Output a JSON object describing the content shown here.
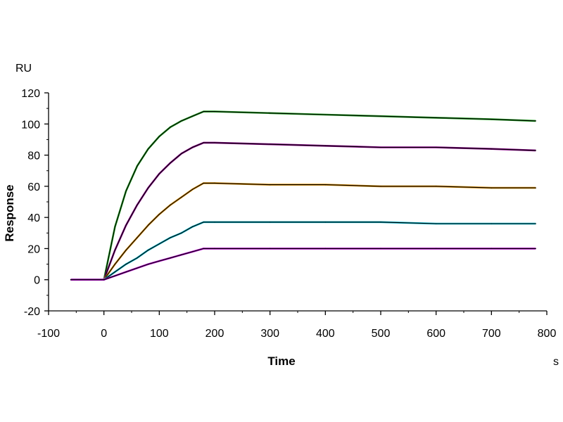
{
  "chart_data": {
    "type": "line",
    "xlabel": "Time",
    "ylabel": "Response",
    "x_unit": "s",
    "y_unit": "RU",
    "xlim": [
      -100,
      800
    ],
    "ylim": [
      -20,
      120
    ],
    "x_ticks": [
      -100,
      0,
      100,
      200,
      300,
      400,
      500,
      600,
      700,
      800
    ],
    "y_ticks": [
      -20,
      0,
      20,
      40,
      60,
      80,
      100,
      120
    ],
    "grid": false,
    "association_end": 180,
    "fit_color": "#000000",
    "series": [
      {
        "color": "#1f9e1f",
        "x": [
          -60,
          0,
          20,
          40,
          60,
          80,
          100,
          120,
          140,
          160,
          180,
          200,
          300,
          400,
          500,
          600,
          700,
          780
        ],
        "y": [
          0,
          0,
          34,
          57,
          73,
          84,
          92,
          98,
          102,
          105,
          108,
          108,
          107,
          106,
          105,
          104,
          103,
          102
        ]
      },
      {
        "color": "#8b008b",
        "x": [
          -60,
          0,
          20,
          40,
          60,
          80,
          100,
          120,
          140,
          160,
          180,
          200,
          300,
          400,
          500,
          600,
          700,
          780
        ],
        "y": [
          0,
          0,
          19,
          35,
          48,
          59,
          68,
          75,
          81,
          85,
          88,
          88,
          87,
          86,
          85,
          85,
          84,
          83
        ]
      },
      {
        "color": "#d98c00",
        "x": [
          -60,
          0,
          20,
          40,
          60,
          80,
          100,
          120,
          140,
          160,
          180,
          200,
          300,
          400,
          500,
          600,
          700,
          780
        ],
        "y": [
          0,
          0,
          10,
          19,
          27,
          35,
          42,
          48,
          53,
          58,
          62,
          62,
          61,
          61,
          60,
          60,
          59,
          59
        ]
      },
      {
        "color": "#00b2c8",
        "x": [
          -60,
          0,
          20,
          40,
          60,
          80,
          100,
          120,
          140,
          160,
          180,
          200,
          300,
          400,
          500,
          600,
          700,
          780
        ],
        "y": [
          0,
          0,
          5,
          10,
          14,
          19,
          23,
          27,
          30,
          34,
          37,
          37,
          37,
          37,
          37,
          36,
          36,
          36
        ]
      },
      {
        "color": "#b000c8",
        "x": [
          -60,
          0,
          20,
          40,
          60,
          80,
          100,
          120,
          140,
          160,
          180,
          200,
          300,
          400,
          500,
          600,
          700,
          780
        ],
        "y": [
          0,
          0,
          2.5,
          5,
          7.5,
          10,
          12,
          14,
          16,
          18,
          20,
          20,
          20,
          20,
          20,
          20,
          20,
          20
        ]
      }
    ]
  }
}
